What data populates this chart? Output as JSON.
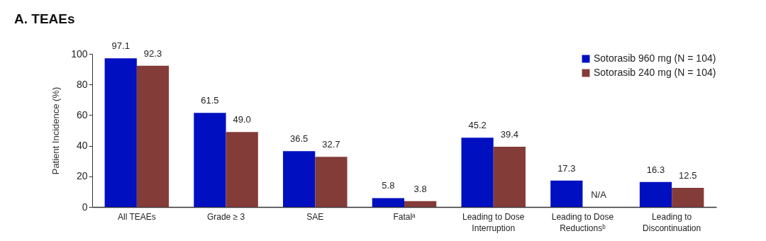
{
  "chart_data": {
    "type": "bar",
    "title": "A. TEAEs",
    "ylabel": "Patient Incidence (%)",
    "categories": [
      "All TEAEs",
      "Grade ≥ 3",
      "SAE",
      "Fatalᵃ",
      "Leading to Dose Interruption",
      "Leading to Dose Reductionsᵇ",
      "Leading to Discontinuation"
    ],
    "series": [
      {
        "name": "Sotorasib 960 mg (N = 104)",
        "color": "#0010c0",
        "values": [
          97.1,
          61.5,
          36.5,
          5.8,
          45.2,
          17.3,
          16.3
        ],
        "value_labels": [
          "97.1",
          "61.5",
          "36.5",
          "5.8",
          "45.2",
          "17.3",
          "16.3"
        ]
      },
      {
        "name": "Sotorasib 240 mg (N = 104)",
        "color": "#843c39",
        "values": [
          92.3,
          49.0,
          32.7,
          3.8,
          39.4,
          null,
          12.5
        ],
        "value_labels": [
          "92.3",
          "49.0",
          "32.7",
          "3.8",
          "39.4",
          "N/A",
          "12.5"
        ]
      }
    ],
    "ylim": [
      0,
      100
    ],
    "yticks": [
      0,
      20,
      40,
      60,
      80,
      100
    ],
    "grid": false,
    "legend": "top right"
  }
}
